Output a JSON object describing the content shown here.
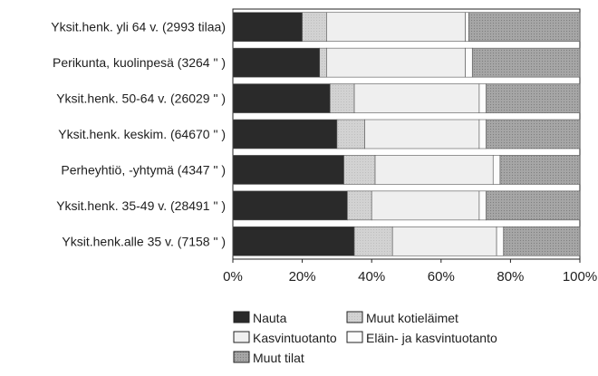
{
  "chart_data": {
    "type": "bar",
    "orientation": "horizontal",
    "stacked": "percent",
    "categories": [
      "Yksit.henk.  yli 64 v. (2993  tilaa)",
      "Perikunta, kuolinpesä (3264   \"  )",
      "Yksit.henk.  50-64 v. (26029  \"  )",
      "Yksit.henk. keskim.  (64670   \"  )",
      "Perheyhtiö, -yhtymä  (4347     \"  )",
      "Yksit.henk.  35-49 v. (28491  \"  )",
      "Yksit.henk.alle 35 v. (7158    \"  )"
    ],
    "series": [
      {
        "name": "Nauta",
        "values": [
          20,
          25,
          28,
          30,
          32,
          33,
          35
        ]
      },
      {
        "name": "Muut kotieläimet",
        "values": [
          7,
          2,
          7,
          8,
          9,
          7,
          11
        ]
      },
      {
        "name": "Kasvintuotanto",
        "values": [
          40,
          40,
          36,
          33,
          34,
          31,
          30
        ]
      },
      {
        "name": "Eläin- ja kasvintuotanto",
        "values": [
          1,
          2,
          2,
          2,
          2,
          2,
          2
        ]
      },
      {
        "name": "Muut tilat",
        "values": [
          32,
          31,
          27,
          27,
          23,
          27,
          22
        ]
      }
    ],
    "xlim": [
      0,
      100
    ],
    "x_ticks": [
      "0%",
      "20%",
      "40%",
      "60%",
      "80%",
      "100%"
    ],
    "legend_position": "bottom",
    "colors": {
      "Nauta": "#2a2a2a",
      "Muut kotieläimet": "#d2d2d2",
      "Kasvintuotanto": "#efefef",
      "Eläin- ja kasvintuotanto": "#fcfcfc",
      "Muut tilat": "#a6a6a6"
    }
  }
}
